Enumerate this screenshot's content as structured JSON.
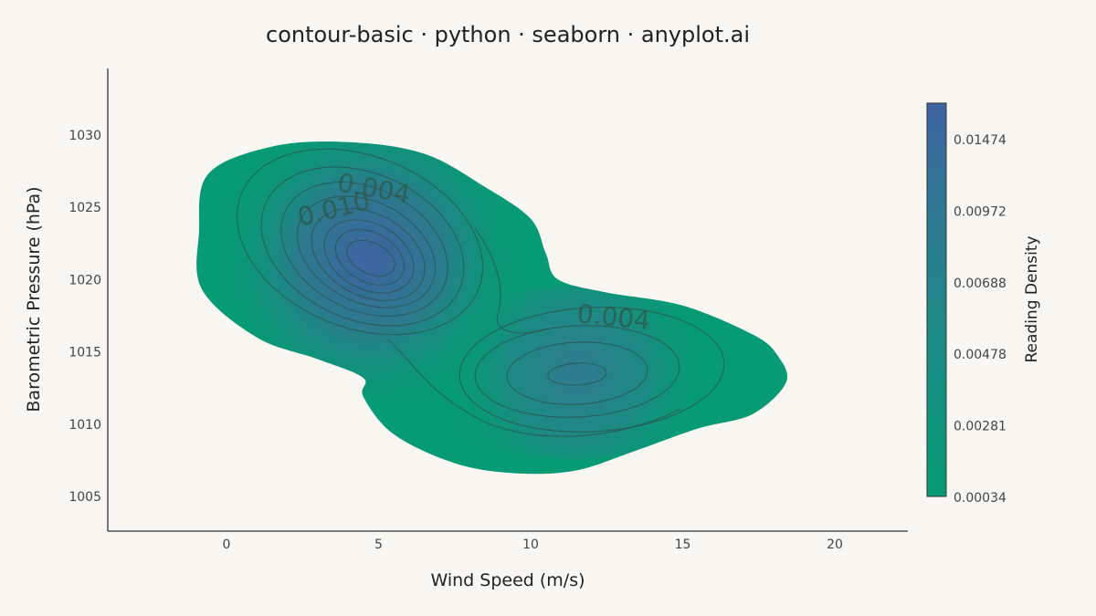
{
  "chart_data": {
    "type": "contour",
    "title": "contour-basic · python · seaborn · anyplot.ai",
    "xlabel": "Wind Speed (m/s)",
    "ylabel": "Barometric Pressure (hPa)",
    "xlim": [
      -3.9,
      22.4
    ],
    "ylim": [
      1002.6,
      1034.6
    ],
    "x_ticks": [
      0,
      5,
      10,
      15,
      20
    ],
    "y_ticks": [
      1005,
      1010,
      1015,
      1020,
      1025,
      1030
    ],
    "modes": [
      {
        "x": 4.8,
        "y": 1021.2,
        "peak_density": 0.0152
      },
      {
        "x": 11.7,
        "y": 1013.3,
        "peak_density": 0.0068
      }
    ],
    "outer_boundary": [
      [
        -0.6,
        1027.3
      ],
      [
        1.5,
        1029.2
      ],
      [
        4.0,
        1029.5
      ],
      [
        6.5,
        1028.7
      ],
      [
        8.5,
        1026.4
      ],
      [
        10.0,
        1024.2
      ],
      [
        10.5,
        1021.8
      ],
      [
        10.9,
        1020.0
      ],
      [
        12.5,
        1019.1
      ],
      [
        15.0,
        1018.2
      ],
      [
        17.3,
        1016.2
      ],
      [
        18.1,
        1014.8
      ],
      [
        18.4,
        1012.9
      ],
      [
        17.3,
        1010.7
      ],
      [
        15.5,
        1009.7
      ],
      [
        13.5,
        1008.2
      ],
      [
        11.5,
        1006.8
      ],
      [
        9.5,
        1006.6
      ],
      [
        7.5,
        1007.3
      ],
      [
        5.5,
        1009.3
      ],
      [
        4.5,
        1011.9
      ],
      [
        4.5,
        1013.2
      ],
      [
        3.0,
        1014.5
      ],
      [
        1.0,
        1016.0
      ],
      [
        -0.8,
        1019.3
      ],
      [
        -0.9,
        1023.3
      ]
    ],
    "contour_labels": [
      {
        "text": "0.004",
        "x": 4.8,
        "y": 1025.7
      },
      {
        "text": "0.010",
        "x": 3.6,
        "y": 1024.3
      },
      {
        "text": "0.004",
        "x": 12.7,
        "y": 1016.8
      }
    ],
    "colorbar": {
      "label": "Reading Density",
      "ticks": [
        "0.01474",
        "0.00972",
        "0.00688",
        "0.00478",
        "0.00281",
        "0.00034"
      ],
      "color_low": "#069b74",
      "color_high": "#3f63a3"
    }
  }
}
